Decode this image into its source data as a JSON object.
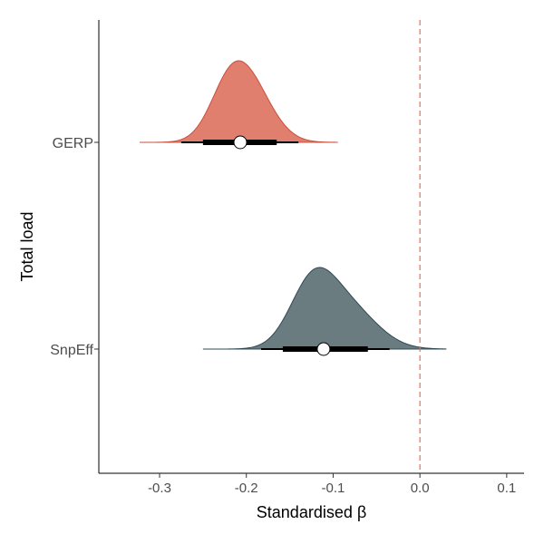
{
  "chart_data": {
    "type": "halfeye",
    "title": "",
    "xlabel": "Standardised β",
    "ylabel": "Total load",
    "xlim": [
      -0.37,
      0.12
    ],
    "x_ticks": [
      -0.3,
      -0.2,
      -0.1,
      0.0,
      0.1
    ],
    "x_tick_labels": [
      "-0.3",
      "-0.2",
      "-0.1",
      "0.0",
      "0.1"
    ],
    "reference_line": {
      "x": 0,
      "style": "dashed",
      "color": "#d9735e"
    },
    "grid": false,
    "legend": "none",
    "series": [
      {
        "name": "GERP",
        "color": "#e07f6e",
        "point": -0.207,
        "interval_66": [
          -0.25,
          -0.165
        ],
        "interval_95": [
          -0.275,
          -0.14
        ],
        "range": [
          -0.323,
          -0.095
        ],
        "density_peak_x": -0.205
      },
      {
        "name": "SnpEff",
        "color": "#6a7c80",
        "point": -0.111,
        "interval_66": [
          -0.158,
          -0.06
        ],
        "interval_95": [
          -0.183,
          -0.035
        ],
        "range": [
          -0.25,
          0.03
        ],
        "density_peak_x": -0.118
      }
    ]
  }
}
